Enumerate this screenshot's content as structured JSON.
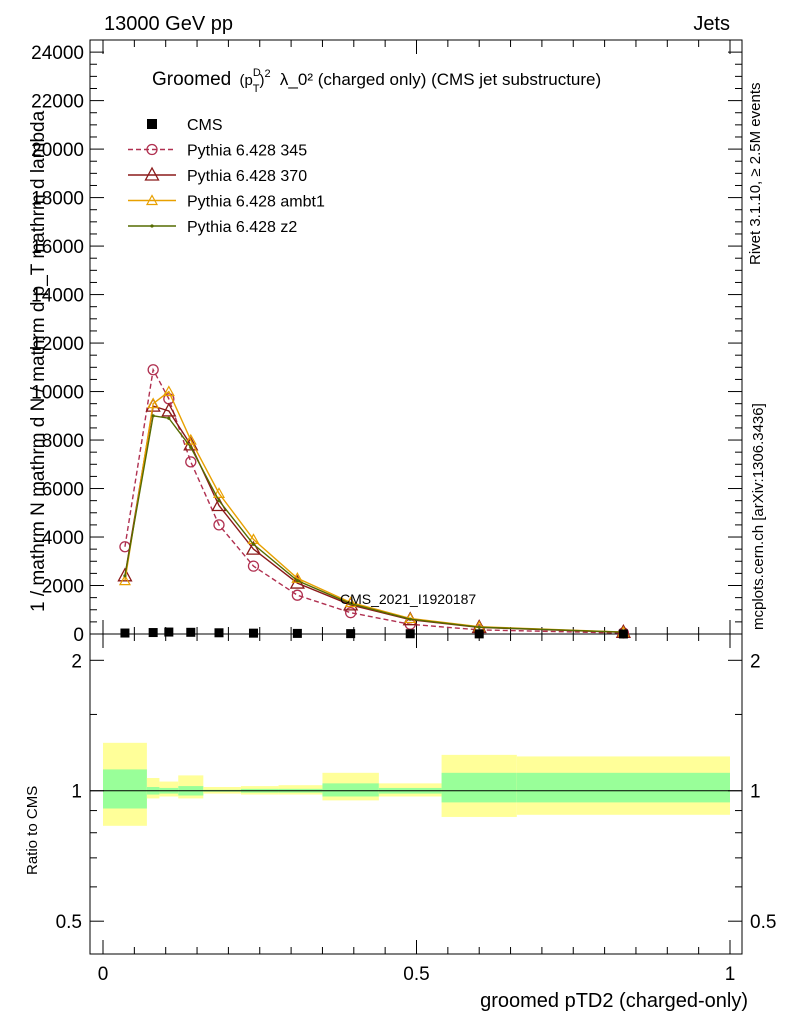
{
  "header": {
    "left": "13000 GeV pp",
    "right": "Jets"
  },
  "side": {
    "top": "Rivet 3.1.10, ≥ 2.5M events",
    "bottom": "mcplots.cern.ch [arXiv:1306.3436]"
  },
  "chart_data": {
    "type": "line",
    "title_main": "Groomed",
    "title_rest": "λ_0²  (charged only) (CMS jet substructure)",
    "watermark": "CMS_2021_I1920187",
    "ylabel_main": "1 / mathrm N mathrm d N / mathrm d p_T mathrm d lambda",
    "xlabel": "groomed pTD2 (charged-only)",
    "ratio_ylabel": "Ratio to CMS",
    "xlim": [
      0,
      1
    ],
    "ylim": [
      0,
      24500
    ],
    "y_ticks": [
      "0",
      "2000",
      "4000",
      "6000",
      "8000",
      "10000",
      "12000",
      "14000",
      "16000",
      "18000",
      "20000",
      "22000",
      "24000"
    ],
    "y_tick_values": [
      0,
      2000,
      4000,
      6000,
      8000,
      10000,
      12000,
      14000,
      16000,
      18000,
      20000,
      22000,
      24000
    ],
    "x_ticks": [
      "0",
      "0.5",
      "1"
    ],
    "x_tick_values": [
      0,
      0.5,
      1
    ],
    "ratio_ylim": [
      0.42,
      2.3
    ],
    "ratio_y_ticks": [
      "0.5",
      "1",
      "2"
    ],
    "ratio_y_tick_values": [
      0.5,
      1,
      2
    ],
    "legend": [
      "CMS",
      "Pythia 6.428 345",
      "Pythia 6.428 370",
      "Pythia 6.428 ambt1",
      "Pythia 6.428 z2"
    ],
    "bin_edges": [
      0,
      0.07,
      0.09,
      0.12,
      0.16,
      0.22,
      0.28,
      0.35,
      0.44,
      0.54,
      0.66,
      1.0
    ],
    "data": {
      "name": "CMS",
      "x": [
        0.035,
        0.08,
        0.105,
        0.14,
        0.185,
        0.24,
        0.31,
        0.395,
        0.49,
        0.6,
        0.83
      ],
      "y": [
        40,
        60,
        80,
        70,
        50,
        35,
        25,
        15,
        10,
        5,
        2
      ]
    },
    "series": [
      {
        "name": "Pythia 6.428 345",
        "color": "#b03050",
        "x": [
          0.035,
          0.08,
          0.105,
          0.14,
          0.185,
          0.24,
          0.31,
          0.395,
          0.49,
          0.6,
          0.83
        ],
        "y": [
          3600,
          10900,
          9700,
          7100,
          4500,
          2800,
          1600,
          880,
          400,
          170,
          40
        ]
      },
      {
        "name": "Pythia 6.428 370",
        "color": "#8b1a1a",
        "x": [
          0.035,
          0.08,
          0.105,
          0.14,
          0.185,
          0.24,
          0.31,
          0.395,
          0.49,
          0.6,
          0.83
        ],
        "y": [
          2400,
          9400,
          9200,
          7800,
          5300,
          3500,
          2100,
          1200,
          590,
          270,
          70
        ]
      },
      {
        "name": "Pythia 6.428 ambt1",
        "color": "#e8a000",
        "x": [
          0.035,
          0.08,
          0.105,
          0.14,
          0.185,
          0.24,
          0.31,
          0.395,
          0.49,
          0.6,
          0.83
        ],
        "y": [
          2200,
          9500,
          10000,
          8000,
          5800,
          3900,
          2300,
          1300,
          640,
          300,
          80
        ]
      },
      {
        "name": "Pythia 6.428 z2",
        "color": "#556b00",
        "x": [
          0.035,
          0.08,
          0.105,
          0.14,
          0.185,
          0.24,
          0.31,
          0.395,
          0.49,
          0.6,
          0.83
        ],
        "y": [
          2400,
          9000,
          8900,
          7700,
          5500,
          3700,
          2200,
          1250,
          610,
          280,
          75
        ]
      }
    ],
    "ratio_bands": {
      "stat_color": "#99ff99",
      "total_color": "#ffff99",
      "stat_low": [
        0.91,
        0.98,
        0.985,
        0.975,
        0.995,
        0.99,
        0.99,
        0.97,
        0.985,
        0.94,
        0.94
      ],
      "stat_high": [
        1.12,
        1.02,
        1.015,
        1.025,
        1.005,
        1.01,
        1.01,
        1.04,
        1.015,
        1.1,
        1.1
      ],
      "tot_low": [
        0.83,
        0.96,
        0.97,
        0.96,
        0.985,
        0.98,
        0.98,
        0.95,
        0.97,
        0.87,
        0.88
      ],
      "tot_high": [
        1.29,
        1.07,
        1.05,
        1.085,
        1.02,
        1.025,
        1.03,
        1.1,
        1.04,
        1.21,
        1.2
      ]
    }
  }
}
